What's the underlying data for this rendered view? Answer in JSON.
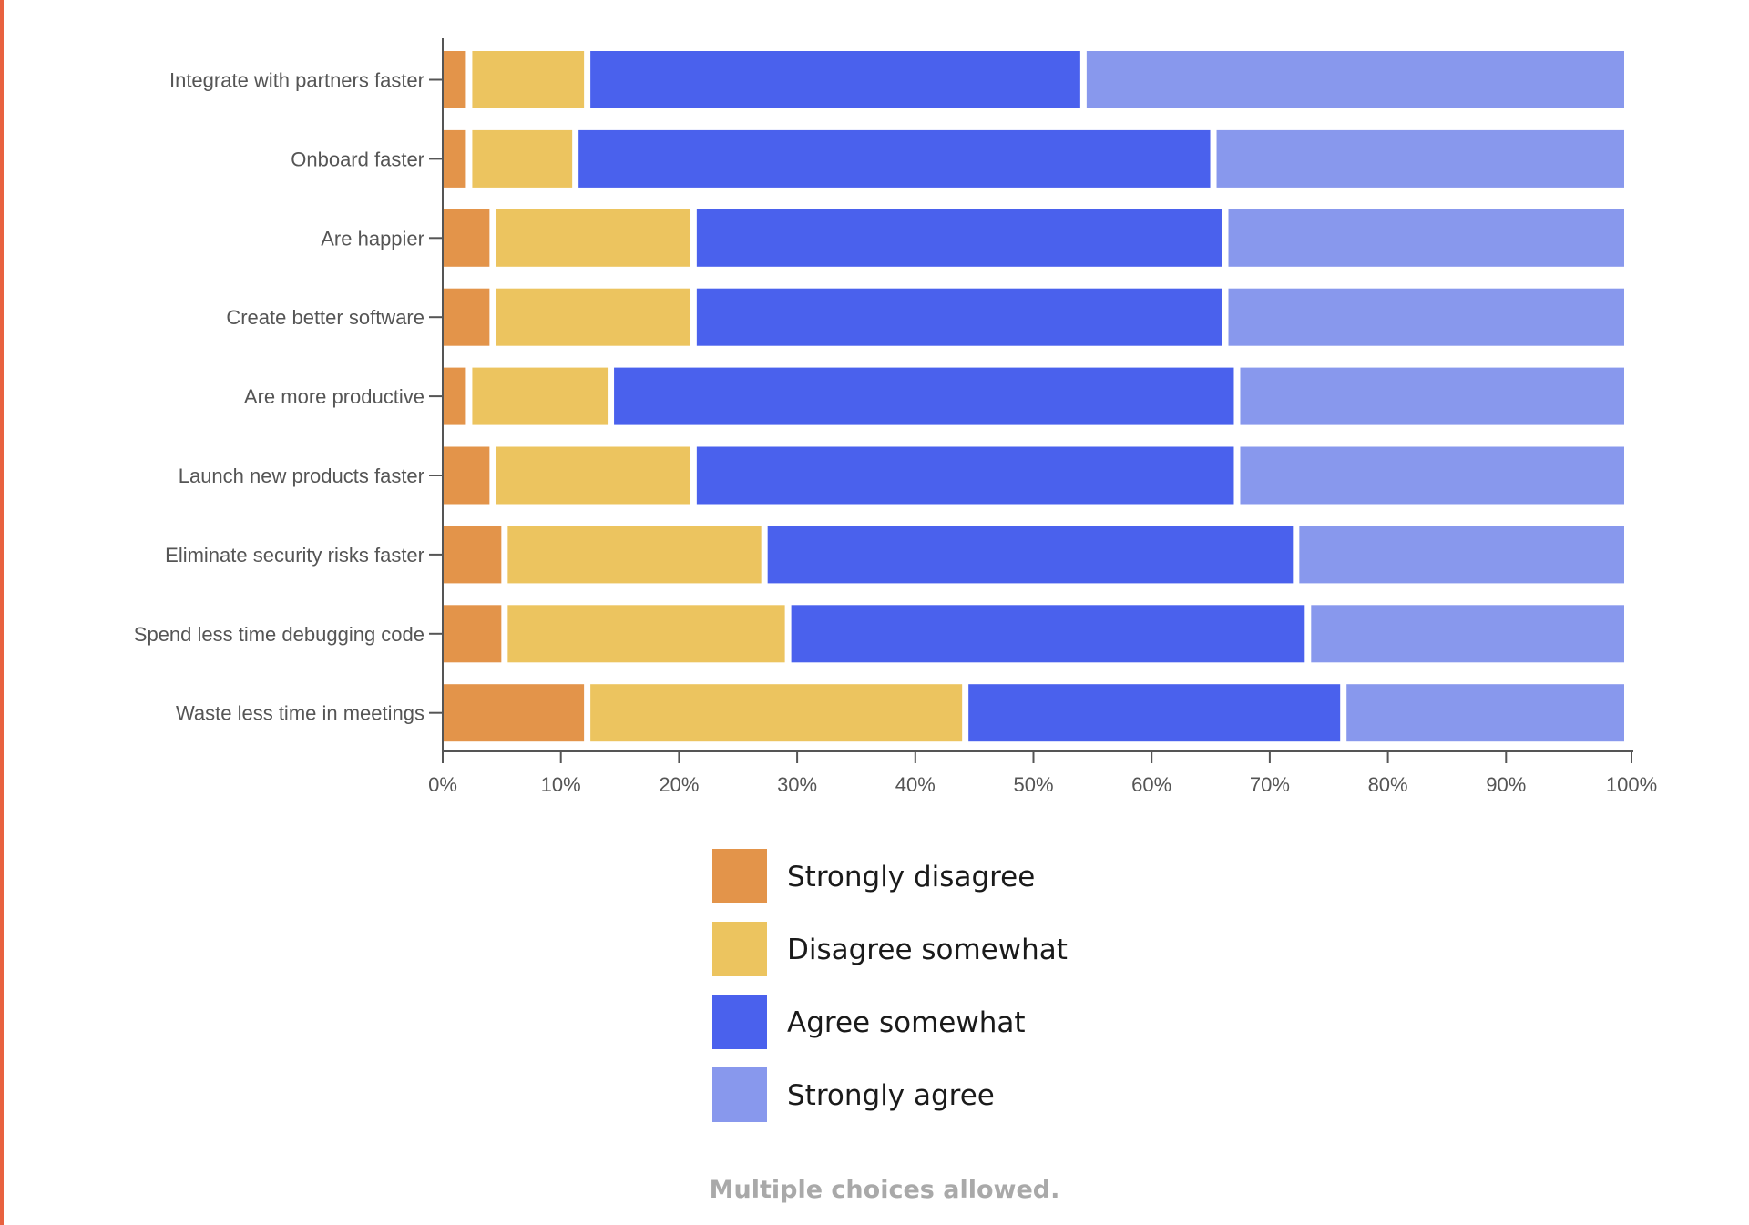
{
  "theme": {
    "accent_left_rule": "#e8613f",
    "axis_color": "#555555",
    "label_color": "#555555"
  },
  "chart_data": {
    "type": "bar",
    "orientation": "horizontal",
    "stacked": true,
    "categories": [
      "Integrate with partners faster",
      "Onboard faster",
      "Are happier",
      "Create better software",
      "Are more productive",
      "Launch new products faster",
      "Eliminate security risks faster",
      "Spend less time debugging code",
      "Waste less time in meetings"
    ],
    "series": [
      {
        "name": "Strongly disagree",
        "color": "#e3944a",
        "values": [
          2.5,
          2.5,
          4.5,
          4.5,
          2.5,
          4.5,
          5.5,
          5.5,
          12.5
        ]
      },
      {
        "name": "Disagree somewhat",
        "color": "#ecc45f",
        "values": [
          10,
          9,
          17,
          17,
          12,
          17,
          22,
          24,
          32
        ]
      },
      {
        "name": "Agree somewhat",
        "color": "#4a61ed",
        "values": [
          42,
          54,
          45,
          45,
          53,
          46,
          45,
          44,
          32
        ]
      },
      {
        "name": "Strongly agree",
        "color": "#8898ed",
        "values": [
          45.5,
          34.5,
          33.5,
          33.5,
          32.5,
          32.5,
          27.5,
          26.5,
          23.5
        ]
      }
    ],
    "xlim": [
      0,
      100
    ],
    "xticks": [
      "0%",
      "10%",
      "20%",
      "30%",
      "40%",
      "50%",
      "60%",
      "70%",
      "80%",
      "90%",
      "100%"
    ],
    "legend_position": "bottom-center",
    "grid": false
  },
  "footnote": "Multiple choices allowed."
}
